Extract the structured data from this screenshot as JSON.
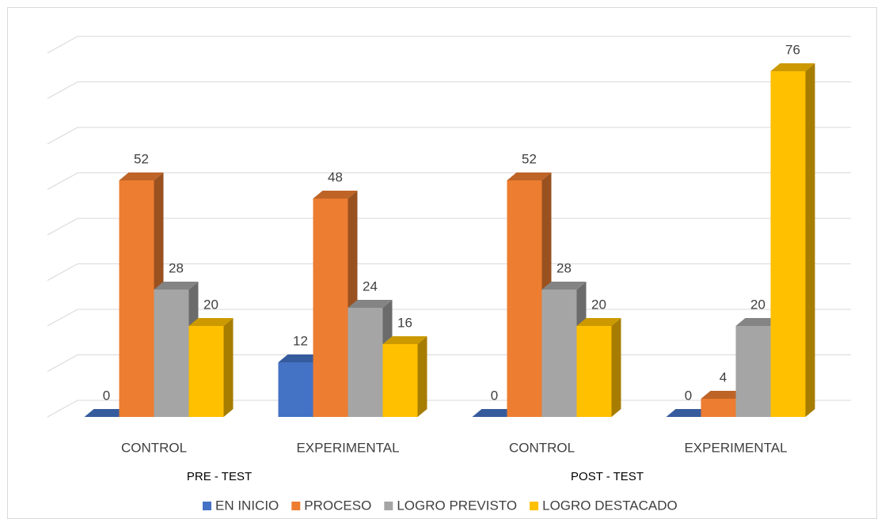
{
  "chart_data": {
    "type": "bar3d",
    "categories": [
      "CONTROL",
      "EXPERIMENTAL",
      "CONTROL",
      "EXPERIMENTAL"
    ],
    "groups": [
      "PRE - TEST",
      "POST - TEST"
    ],
    "series": [
      {
        "name": "EN INICIO",
        "color": "#4472c4",
        "values": [
          0,
          12,
          0,
          0
        ]
      },
      {
        "name": "PROCESO",
        "color": "#ed7d31",
        "values": [
          52,
          48,
          52,
          4
        ]
      },
      {
        "name": "LOGRO PREVISTO",
        "color": "#a5a5a5",
        "values": [
          28,
          24,
          28,
          20
        ]
      },
      {
        "name": "LOGRO DESTACADO",
        "color": "#ffc000",
        "values": [
          20,
          16,
          20,
          76
        ]
      }
    ],
    "ylim": [
      0,
      80
    ],
    "yticks": [
      0,
      10,
      20,
      30,
      40,
      50,
      60,
      70,
      80
    ],
    "grid": true
  }
}
